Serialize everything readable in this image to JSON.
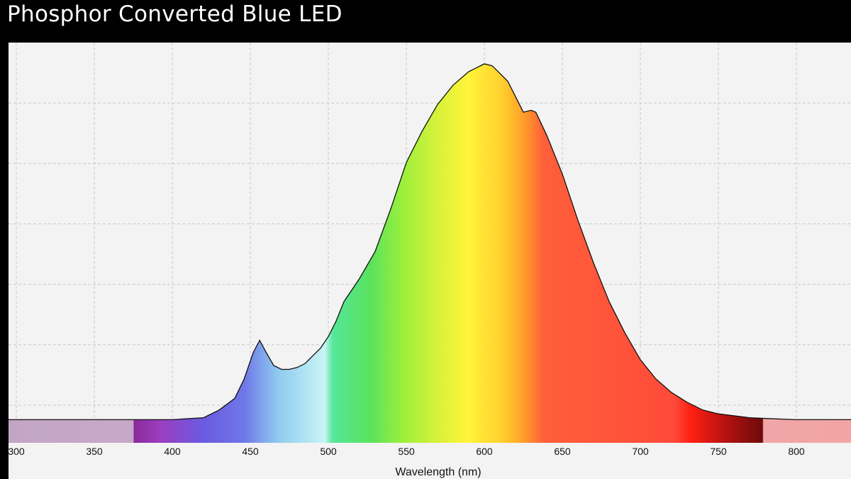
{
  "chart_data": {
    "type": "area",
    "title": "Phosphor Converted Blue LED",
    "xlabel": "Wavelength (nm)",
    "ylabel": "",
    "xlim": [
      295,
      835
    ],
    "ylim": [
      0,
      1.0
    ],
    "grid": true,
    "legend": "none",
    "x_ticks": [
      300,
      350,
      400,
      450,
      500,
      550,
      600,
      650,
      700,
      750,
      800
    ],
    "x_tick_labels": [
      "300",
      "350",
      "400",
      "450",
      "500",
      "550",
      "600",
      "650",
      "700",
      "750",
      "800"
    ],
    "series": [
      {
        "x": [
          295,
          350,
          400,
          420,
          430,
          440,
          446,
          452,
          456,
          460,
          465,
          470,
          475,
          480,
          485,
          490,
          495,
          500,
          505,
          510,
          520,
          530,
          540,
          550,
          560,
          570,
          580,
          590,
          595,
          600,
          605,
          610,
          615,
          620,
          625,
          630,
          633,
          640,
          650,
          660,
          670,
          680,
          690,
          700,
          710,
          720,
          730,
          740,
          750,
          760,
          770,
          780,
          800,
          835
        ],
        "values": [
          0.025,
          0.025,
          0.025,
          0.03,
          0.05,
          0.08,
          0.13,
          0.2,
          0.23,
          0.2,
          0.165,
          0.155,
          0.155,
          0.16,
          0.17,
          0.19,
          0.21,
          0.24,
          0.28,
          0.33,
          0.39,
          0.46,
          0.57,
          0.69,
          0.77,
          0.84,
          0.89,
          0.925,
          0.935,
          0.945,
          0.94,
          0.92,
          0.9,
          0.86,
          0.82,
          0.825,
          0.82,
          0.76,
          0.66,
          0.54,
          0.43,
          0.33,
          0.25,
          0.18,
          0.13,
          0.095,
          0.07,
          0.05,
          0.04,
          0.035,
          0.03,
          0.028,
          0.025,
          0.025
        ]
      }
    ]
  },
  "colors": {
    "frame_background": "#000000",
    "plot_background": "#f3f3f3",
    "grid": "#c8c8c8",
    "curve": "#111111",
    "title_text": "#ffffff",
    "axis_text": "#111111"
  }
}
